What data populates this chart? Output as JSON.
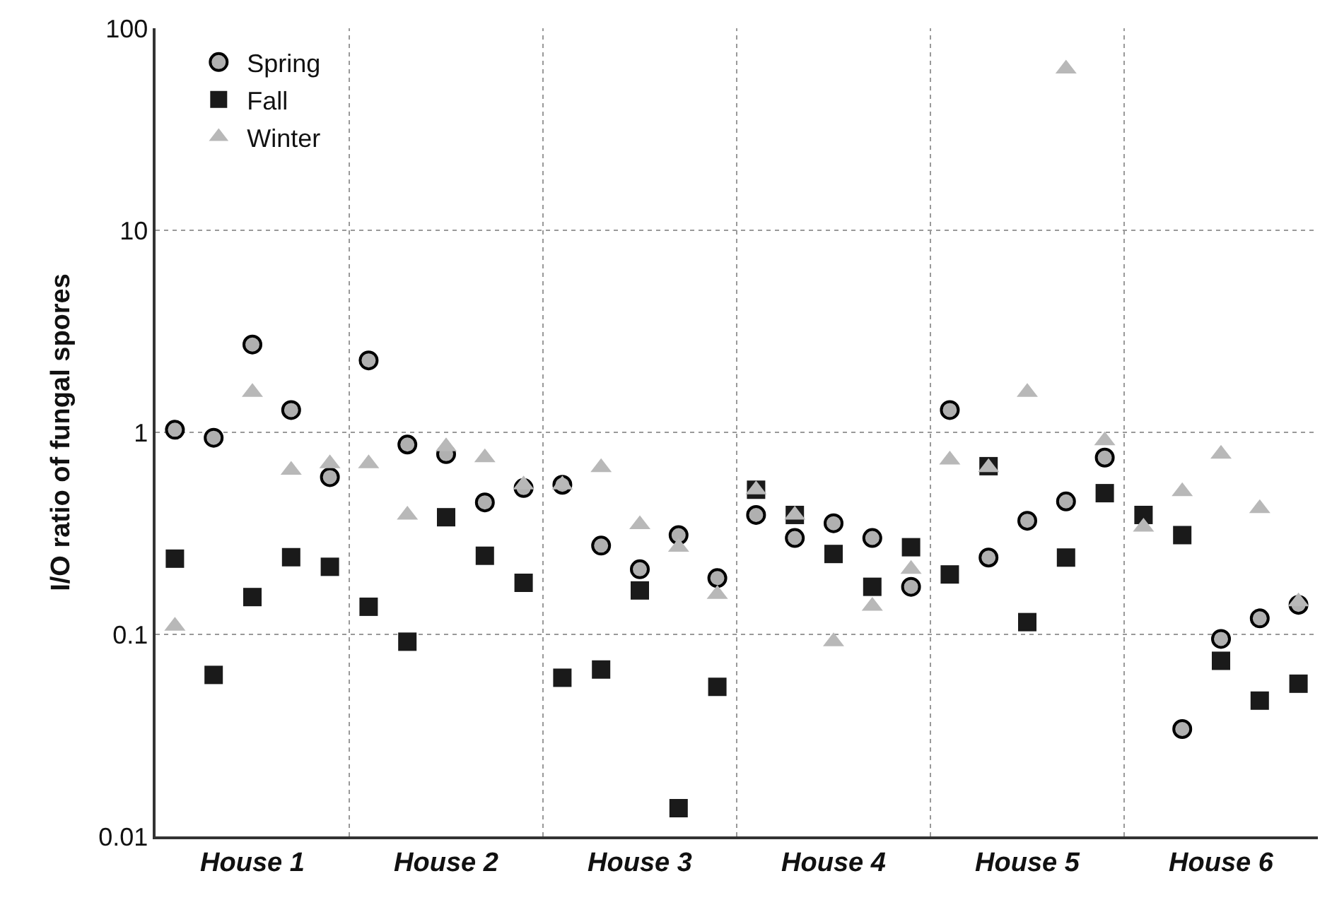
{
  "chart_data": {
    "type": "scatter",
    "ylabel": "I/O ratio of fungal spores",
    "categories": [
      null,
      null,
      "House 1",
      null,
      null,
      null,
      null,
      "House 2",
      null,
      null,
      null,
      null,
      "House 3",
      null,
      null,
      null,
      null,
      "House 4",
      null,
      null,
      null,
      null,
      "House 5",
      null,
      null,
      null,
      null,
      "House 6",
      null,
      null
    ],
    "series": [
      {
        "name": "Spring",
        "color": "#b0b0b0",
        "marker": "circle",
        "values": [
          1.03,
          0.94,
          2.72,
          1.29,
          0.6,
          2.27,
          0.87,
          0.78,
          0.45,
          0.53,
          0.55,
          0.275,
          0.21,
          0.31,
          0.19,
          0.39,
          0.3,
          0.355,
          0.3,
          0.172,
          1.29,
          0.24,
          0.365,
          0.455,
          0.75,
          null,
          0.034,
          0.095,
          0.12,
          0.14
        ]
      },
      {
        "name": "Fall",
        "color": "#1a1a1a",
        "marker": "square",
        "values": [
          0.237,
          0.063,
          0.153,
          0.241,
          0.216,
          0.137,
          0.092,
          0.38,
          0.245,
          0.18,
          0.061,
          0.067,
          0.165,
          0.0138,
          0.055,
          0.52,
          0.39,
          0.25,
          0.172,
          0.27,
          0.198,
          0.68,
          0.115,
          0.24,
          0.5,
          0.39,
          0.31,
          0.074,
          0.047,
          0.057
        ]
      },
      {
        "name": "Winter",
        "color": "#b8b8b8",
        "marker": "triangle",
        "values": [
          0.11,
          null,
          1.58,
          0.65,
          0.7,
          0.7,
          0.39,
          0.85,
          0.75,
          0.55,
          0.55,
          0.67,
          0.35,
          0.27,
          0.158,
          0.52,
          0.39,
          0.092,
          0.138,
          0.21,
          0.73,
          0.67,
          1.58,
          63,
          0.91,
          0.34,
          0.51,
          0.78,
          0.42,
          0.145
        ]
      }
    ],
    "log": "y",
    "ylim": [
      0.01,
      100
    ],
    "yticks": [
      0.01,
      0.1,
      1,
      10,
      100
    ],
    "grid": true,
    "legend": "top left"
  }
}
